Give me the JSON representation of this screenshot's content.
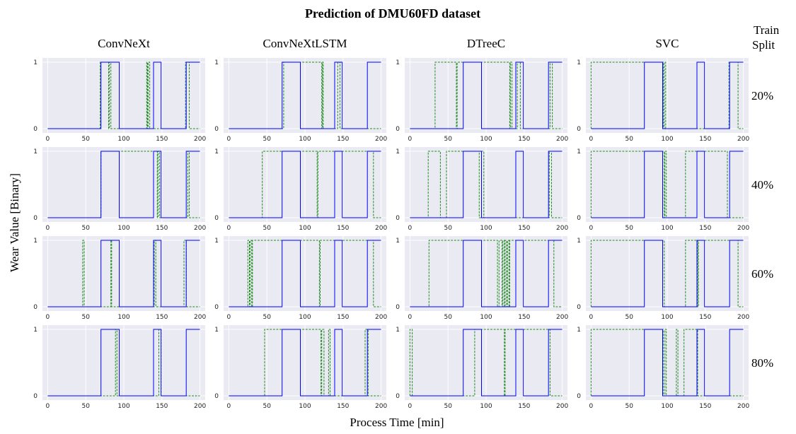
{
  "figure": {
    "title": "Prediction of DMU60FD dataset",
    "xlabel": "Process Time [min]",
    "ylabel": "Wear Value [Binary]",
    "row_header": [
      "Train",
      "Split"
    ]
  },
  "colors": {
    "panel_bg": "#e9eaf2",
    "grid": "#ffffff",
    "true_line": "#0000ff",
    "pred_line": "#228b22"
  },
  "chart_data": {
    "type": "line",
    "layout": "grid 4x4 (rows = train split, columns = model)",
    "columns": [
      "ConvNeXt",
      "ConvNeXtLSTM",
      "DTreeC",
      "SVC"
    ],
    "rows": [
      "20%",
      "40%",
      "60%",
      "80%"
    ],
    "xlim": [
      0,
      200
    ],
    "ylim": [
      0,
      1
    ],
    "x_ticks": [
      0,
      50,
      100,
      150,
      200
    ],
    "y_ticks": [
      0,
      1
    ],
    "grid": true,
    "true_transitions": [
      [
        70,
        1
      ],
      [
        94,
        0
      ],
      [
        139,
        1
      ],
      [
        149,
        0
      ],
      [
        182,
        1
      ]
    ],
    "predicted_transitions": [
      [
        [
          [
            69,
            1
          ],
          [
            80,
            0
          ],
          [
            81,
            1
          ],
          [
            83,
            0
          ],
          [
            130,
            1
          ],
          [
            131,
            0
          ],
          [
            132,
            1
          ],
          [
            134,
            0
          ],
          [
            181,
            1
          ],
          [
            186,
            0
          ]
        ],
        [
          [
            72,
            1
          ],
          [
            122,
            0
          ],
          [
            123,
            1
          ],
          [
            124,
            0
          ],
          [
            143,
            1
          ],
          [
            146,
            0
          ]
        ],
        [
          [
            33,
            1
          ],
          [
            61,
            0
          ],
          [
            62,
            1
          ],
          [
            131,
            0
          ],
          [
            132,
            1
          ],
          [
            134,
            0
          ],
          [
            141,
            1
          ],
          [
            145,
            0
          ],
          [
            184,
            1
          ],
          [
            187,
            0
          ]
        ],
        [
          [
            0,
            1
          ],
          [
            95,
            0
          ],
          [
            96,
            1
          ],
          [
            98,
            0
          ],
          [
            181,
            1
          ],
          [
            193,
            0
          ]
        ]
      ],
      [
        [
          [
            70,
            1
          ],
          [
            144,
            0
          ],
          [
            145,
            1
          ],
          [
            147,
            0
          ],
          [
            184,
            1
          ],
          [
            186,
            0
          ]
        ],
        [
          [
            44,
            1
          ],
          [
            116,
            0
          ],
          [
            117,
            1
          ],
          [
            190,
            0
          ]
        ],
        [
          [
            24,
            1
          ],
          [
            40,
            0
          ],
          [
            48,
            1
          ],
          [
            91,
            0
          ],
          [
            94,
            1
          ],
          [
            97,
            0
          ],
          [
            183,
            1
          ],
          [
            186,
            0
          ]
        ],
        [
          [
            0,
            1
          ],
          [
            96,
            0
          ],
          [
            97,
            1
          ],
          [
            99,
            0
          ],
          [
            124,
            1
          ],
          [
            179,
            0
          ]
        ]
      ],
      [
        [
          [
            46,
            1
          ],
          [
            48,
            0
          ],
          [
            83,
            1
          ],
          [
            84,
            0
          ],
          [
            140,
            1
          ],
          [
            142,
            0
          ],
          [
            179,
            1
          ],
          [
            182,
            0
          ]
        ],
        [
          [
            25,
            1
          ],
          [
            27,
            0
          ],
          [
            28,
            1
          ],
          [
            30,
            0
          ],
          [
            31,
            1
          ],
          [
            119,
            0
          ],
          [
            120,
            1
          ],
          [
            190,
            0
          ]
        ],
        [
          [
            25,
            1
          ],
          [
            115,
            0
          ],
          [
            117,
            1
          ],
          [
            121,
            0
          ],
          [
            122,
            1
          ],
          [
            124,
            0
          ],
          [
            125,
            1
          ],
          [
            127,
            0
          ],
          [
            128,
            1
          ],
          [
            130,
            0
          ],
          [
            131,
            1
          ],
          [
            189,
            0
          ]
        ],
        [
          [
            0,
            1
          ],
          [
            96,
            0
          ],
          [
            124,
            1
          ],
          [
            140,
            0
          ],
          [
            141,
            1
          ],
          [
            193,
            0
          ]
        ]
      ],
      [
        [
          [
            89,
            1
          ],
          [
            91,
            0
          ],
          [
            146,
            1
          ],
          [
            149,
            0
          ]
        ],
        [
          [
            47,
            1
          ],
          [
            121,
            0
          ],
          [
            122,
            1
          ],
          [
            125,
            0
          ],
          [
            131,
            1
          ],
          [
            133,
            0
          ],
          [
            179,
            1
          ],
          [
            183,
            0
          ]
        ],
        [
          [
            0,
            1
          ],
          [
            3,
            0
          ],
          [
            85,
            1
          ],
          [
            124,
            0
          ],
          [
            125,
            1
          ],
          [
            184,
            0
          ]
        ],
        [
          [
            0,
            1
          ],
          [
            95,
            0
          ],
          [
            97,
            1
          ],
          [
            99,
            0
          ],
          [
            112,
            1
          ],
          [
            114,
            0
          ],
          [
            122,
            1
          ],
          [
            140,
            0
          ]
        ]
      ]
    ]
  }
}
